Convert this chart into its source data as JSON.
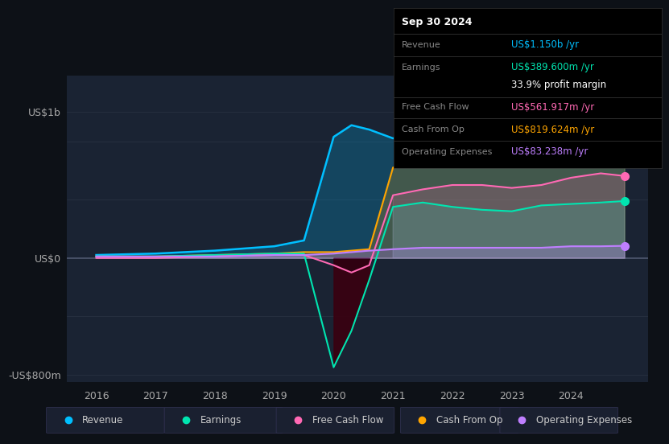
{
  "bg_color": "#0d1117",
  "years": [
    2016,
    2017,
    2018,
    2019,
    2019.5,
    2020,
    2020.3,
    2020.6,
    2021,
    2021.5,
    2022,
    2022.5,
    2023,
    2023.5,
    2024,
    2024.5,
    2024.9
  ],
  "revenue": [
    0.02,
    0.03,
    0.05,
    0.08,
    0.12,
    0.83,
    0.91,
    0.88,
    0.82,
    0.87,
    0.88,
    0.9,
    0.92,
    0.98,
    1.05,
    1.1,
    1.15
  ],
  "earnings": [
    0.01,
    0.01,
    0.02,
    0.03,
    0.03,
    -0.75,
    -0.5,
    -0.15,
    0.35,
    0.38,
    0.35,
    0.33,
    0.32,
    0.36,
    0.37,
    0.38,
    0.39
  ],
  "free_cash_flow": [
    0.0,
    0.0,
    0.01,
    0.02,
    0.02,
    -0.05,
    -0.1,
    -0.05,
    0.43,
    0.47,
    0.5,
    0.5,
    0.48,
    0.5,
    0.55,
    0.58,
    0.562
  ],
  "cash_from_op": [
    0.01,
    0.01,
    0.02,
    0.03,
    0.04,
    0.04,
    0.05,
    0.06,
    0.62,
    0.64,
    0.66,
    0.67,
    0.68,
    0.72,
    0.76,
    0.8,
    0.82
  ],
  "operating_expenses": [
    0.01,
    0.01,
    0.01,
    0.02,
    0.02,
    0.03,
    0.04,
    0.05,
    0.06,
    0.07,
    0.07,
    0.07,
    0.07,
    0.07,
    0.08,
    0.08,
    0.083
  ],
  "revenue_color": "#00bfff",
  "earnings_color": "#00e5b0",
  "fcf_color": "#ff69b4",
  "cashop_color": "#ffa500",
  "opex_color": "#bf7fff",
  "ylim_min": -0.85,
  "ylim_max": 1.25,
  "yticks": [
    -0.8,
    0.0,
    1.0
  ],
  "ytick_labels": [
    "-US$800m",
    "US$0",
    "US$1b"
  ],
  "x_year_labels": [
    "2016",
    "2017",
    "2018",
    "2019",
    "2020",
    "2021",
    "2022",
    "2023",
    "2024"
  ],
  "x_year_positions": [
    2016,
    2017,
    2018,
    2019,
    2020,
    2021,
    2022,
    2023,
    2024
  ],
  "infobox": {
    "date": "Sep 30 2024",
    "revenue_val": "US$1.150b",
    "earnings_val": "US$389.600m",
    "profit_margin": "33.9%",
    "fcf_val": "US$561.917m",
    "cashop_val": "US$819.624m",
    "opex_val": "US$83.238m"
  },
  "legend_items": [
    {
      "label": "Revenue",
      "color": "#00bfff"
    },
    {
      "label": "Earnings",
      "color": "#00e5b0"
    },
    {
      "label": "Free Cash Flow",
      "color": "#ff69b4"
    },
    {
      "label": "Cash From Op",
      "color": "#ffa500"
    },
    {
      "label": "Operating Expenses",
      "color": "#bf7fff"
    }
  ]
}
